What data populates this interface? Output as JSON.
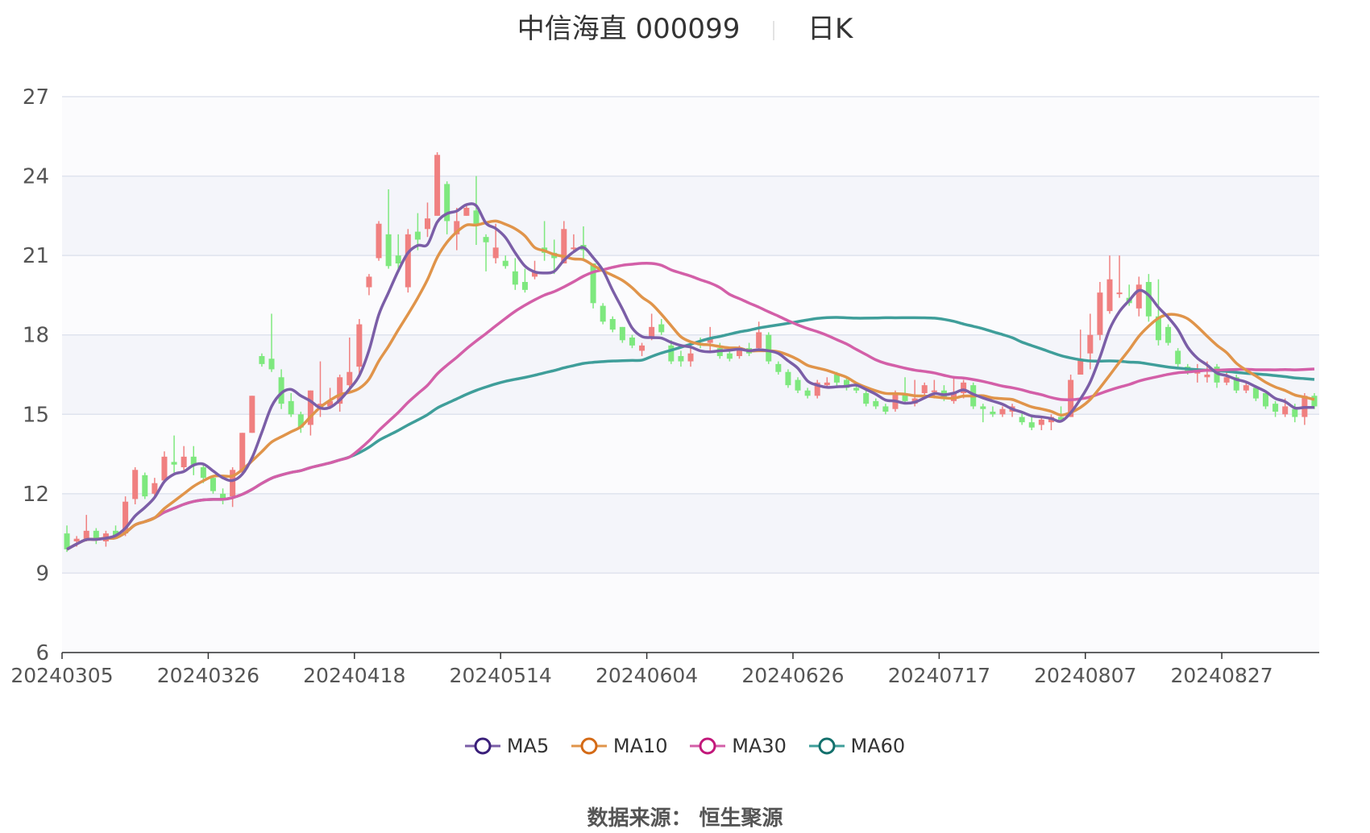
{
  "title": {
    "name": "中信海直 000099",
    "period": "日K"
  },
  "source_label": "数据来源：",
  "source_value": "恒生聚源",
  "colors": {
    "up": "#f08080",
    "down": "#7ee87e",
    "MA5": "#7b5ea7",
    "MA10": "#e0944a",
    "MA30": "#d35fa8",
    "MA60": "#3f9e9a",
    "MA5_dot": "#3a1f7a",
    "MA10_dot": "#d46a16",
    "MA30_dot": "#c2187a",
    "MA60_dot": "#13706c",
    "band": "#f4f5fa",
    "grid": "#dfe3ee"
  },
  "chart_data": {
    "type": "candlestick",
    "ylim": [
      6,
      27
    ],
    "y_ticks": [
      6,
      9,
      12,
      15,
      18,
      21,
      24,
      27
    ],
    "x_tick_labels": [
      "20240305",
      "20240326",
      "20240418",
      "20240514",
      "20240604",
      "20240626",
      "20240717",
      "20240807",
      "20240827"
    ],
    "x_tick_index": [
      0,
      15,
      30,
      45,
      60,
      75,
      90,
      105,
      119
    ],
    "legend": [
      "MA5",
      "MA10",
      "MA30",
      "MA60"
    ],
    "candles": [
      [
        10.5,
        9.9,
        10.8,
        9.8
      ],
      [
        10.2,
        10.3,
        10.4,
        10.0
      ],
      [
        10.3,
        10.6,
        11.2,
        10.2
      ],
      [
        10.6,
        10.3,
        10.7,
        10.1
      ],
      [
        10.2,
        10.5,
        10.6,
        10.0
      ],
      [
        10.6,
        10.4,
        10.8,
        10.3
      ],
      [
        10.5,
        11.7,
        11.9,
        10.4
      ],
      [
        11.8,
        12.9,
        13.0,
        11.6
      ],
      [
        12.7,
        11.9,
        12.8,
        11.8
      ],
      [
        12.0,
        12.4,
        12.6,
        11.9
      ],
      [
        12.5,
        13.4,
        13.6,
        12.4
      ],
      [
        13.2,
        13.1,
        14.2,
        12.8
      ],
      [
        13.0,
        13.4,
        13.8,
        12.9
      ],
      [
        13.4,
        13.1,
        13.8,
        12.7
      ],
      [
        13.0,
        12.6,
        13.1,
        12.4
      ],
      [
        12.6,
        12.1,
        12.7,
        12.0
      ],
      [
        12.0,
        11.8,
        12.2,
        11.6
      ],
      [
        11.9,
        12.9,
        13.0,
        11.5
      ],
      [
        12.8,
        14.3,
        14.3,
        12.8
      ],
      [
        14.3,
        15.7,
        15.7,
        14.3
      ],
      [
        17.2,
        16.9,
        17.3,
        16.8
      ],
      [
        17.1,
        16.7,
        18.8,
        16.6
      ],
      [
        16.4,
        15.4,
        16.7,
        15.2
      ],
      [
        15.5,
        15.0,
        15.8,
        14.9
      ],
      [
        15.0,
        14.5,
        15.1,
        14.3
      ],
      [
        14.6,
        15.9,
        15.9,
        14.2
      ],
      [
        15.2,
        15.4,
        17.0,
        14.9
      ],
      [
        15.3,
        15.5,
        16.0,
        15.2
      ],
      [
        15.4,
        16.4,
        16.5,
        15.1
      ],
      [
        16.1,
        16.6,
        17.9,
        15.9
      ],
      [
        16.8,
        18.4,
        18.6,
        16.5
      ],
      [
        19.8,
        20.2,
        20.3,
        19.5
      ],
      [
        20.9,
        22.2,
        22.3,
        20.8
      ],
      [
        21.8,
        20.6,
        23.5,
        20.5
      ],
      [
        21.0,
        20.7,
        21.8,
        20.4
      ],
      [
        19.8,
        21.8,
        22.0,
        19.6
      ],
      [
        21.9,
        21.6,
        22.6,
        21.2
      ],
      [
        22.0,
        22.4,
        23.0,
        21.7
      ],
      [
        22.5,
        24.8,
        24.9,
        22.5
      ],
      [
        23.7,
        22.3,
        23.8,
        21.8
      ],
      [
        21.8,
        22.3,
        22.8,
        21.2
      ],
      [
        22.5,
        22.8,
        22.9,
        22.5
      ],
      [
        22.7,
        22.2,
        24.0,
        21.4
      ],
      [
        21.7,
        21.5,
        21.8,
        20.4
      ],
      [
        20.9,
        21.3,
        22.2,
        20.7
      ],
      [
        20.8,
        20.6,
        21.0,
        20.5
      ],
      [
        20.4,
        19.9,
        20.9,
        19.7
      ],
      [
        20.0,
        19.7,
        20.5,
        19.6
      ],
      [
        20.2,
        20.4,
        20.8,
        20.1
      ],
      [
        21.3,
        21.1,
        22.3,
        20.8
      ],
      [
        21.1,
        20.9,
        21.6,
        20.3
      ],
      [
        20.7,
        22.0,
        22.3,
        20.7
      ],
      [
        21.3,
        21.3,
        21.8,
        21.1
      ],
      [
        21.4,
        21.2,
        22.1,
        20.8
      ],
      [
        20.7,
        19.2,
        20.7,
        19.0
      ],
      [
        19.1,
        18.5,
        19.2,
        18.4
      ],
      [
        18.6,
        18.2,
        18.7,
        18.1
      ],
      [
        18.3,
        17.8,
        18.3,
        17.7
      ],
      [
        17.9,
        17.6,
        18.0,
        17.5
      ],
      [
        17.4,
        17.6,
        17.7,
        17.2
      ],
      [
        17.9,
        18.3,
        18.8,
        17.8
      ],
      [
        18.4,
        18.1,
        18.6,
        18.0
      ],
      [
        17.6,
        17.0,
        17.8,
        16.9
      ],
      [
        17.2,
        17.0,
        17.4,
        16.8
      ],
      [
        17.0,
        17.3,
        17.6,
        16.8
      ],
      [
        17.7,
        17.6,
        17.9,
        17.5
      ],
      [
        17.7,
        17.9,
        18.3,
        17.4
      ],
      [
        17.5,
        17.2,
        17.7,
        17.1
      ],
      [
        17.3,
        17.1,
        17.4,
        17.0
      ],
      [
        17.2,
        17.5,
        17.6,
        17.1
      ],
      [
        17.5,
        17.3,
        17.7,
        17.2
      ],
      [
        17.5,
        18.1,
        18.5,
        17.4
      ],
      [
        18.0,
        17.0,
        18.1,
        16.9
      ],
      [
        16.9,
        16.6,
        17.0,
        16.5
      ],
      [
        16.6,
        16.1,
        16.7,
        16.0
      ],
      [
        16.3,
        15.9,
        16.4,
        15.8
      ],
      [
        15.9,
        15.7,
        16.0,
        15.6
      ],
      [
        15.7,
        16.2,
        16.3,
        15.6
      ],
      [
        16.1,
        16.2,
        16.4,
        16.0
      ],
      [
        16.5,
        16.2,
        16.6,
        16.0
      ],
      [
        16.3,
        16.0,
        16.4,
        15.9
      ],
      [
        16.0,
        15.9,
        16.1,
        15.8
      ],
      [
        15.8,
        15.4,
        15.9,
        15.3
      ],
      [
        15.5,
        15.3,
        15.6,
        15.2
      ],
      [
        15.3,
        15.1,
        15.4,
        15.0
      ],
      [
        15.2,
        15.8,
        15.9,
        15.1
      ],
      [
        15.8,
        15.5,
        16.4,
        15.4
      ],
      [
        15.4,
        15.6,
        16.3,
        15.3
      ],
      [
        15.8,
        16.1,
        16.2,
        15.7
      ],
      [
        15.9,
        15.9,
        16.3,
        15.6
      ],
      [
        15.9,
        15.6,
        16.1,
        15.5
      ],
      [
        15.5,
        15.8,
        16.4,
        15.4
      ],
      [
        15.8,
        16.2,
        16.3,
        15.6
      ],
      [
        16.1,
        15.3,
        16.2,
        15.2
      ],
      [
        15.3,
        15.2,
        15.4,
        14.7
      ],
      [
        15.1,
        15.0,
        15.3,
        14.9
      ],
      [
        15.0,
        15.2,
        15.3,
        14.9
      ],
      [
        15.1,
        15.3,
        15.4,
        14.9
      ],
      [
        14.9,
        14.7,
        15.1,
        14.6
      ],
      [
        14.7,
        14.5,
        14.9,
        14.4
      ],
      [
        14.6,
        14.8,
        14.9,
        14.4
      ],
      [
        14.7,
        14.9,
        15.0,
        14.4
      ],
      [
        14.9,
        14.8,
        15.3,
        14.7
      ],
      [
        14.9,
        16.3,
        16.5,
        14.9
      ],
      [
        16.5,
        17.1,
        18.2,
        16.6
      ],
      [
        17.3,
        18.0,
        18.8,
        16.7
      ],
      [
        18.0,
        19.6,
        20.0,
        17.8
      ],
      [
        18.9,
        20.1,
        21.0,
        18.8
      ],
      [
        19.6,
        19.6,
        21.0,
        19.4
      ],
      [
        19.4,
        19.2,
        19.9,
        19.1
      ],
      [
        19.0,
        19.9,
        20.2,
        18.7
      ],
      [
        20.0,
        18.7,
        20.3,
        18.5
      ],
      [
        18.7,
        17.8,
        20.1,
        17.6
      ],
      [
        18.3,
        17.7,
        18.4,
        17.6
      ],
      [
        17.4,
        16.9,
        17.5,
        16.8
      ],
      [
        16.8,
        16.6,
        16.9,
        16.5
      ],
      [
        16.6,
        16.6,
        16.9,
        16.2
      ],
      [
        16.4,
        16.5,
        17.0,
        16.2
      ],
      [
        16.8,
        16.2,
        16.9,
        16.0
      ],
      [
        16.2,
        16.4,
        16.6,
        16.1
      ],
      [
        16.4,
        15.9,
        16.5,
        15.8
      ],
      [
        15.9,
        16.1,
        16.2,
        15.8
      ],
      [
        16.0,
        15.6,
        16.1,
        15.5
      ],
      [
        15.8,
        15.3,
        15.8,
        15.2
      ],
      [
        15.4,
        15.1,
        15.5,
        14.9
      ],
      [
        15.0,
        15.3,
        15.6,
        14.9
      ],
      [
        15.2,
        14.9,
        15.4,
        14.7
      ],
      [
        14.9,
        15.7,
        15.8,
        14.6
      ],
      [
        15.7,
        15.3,
        15.8,
        15.2
      ]
    ]
  }
}
